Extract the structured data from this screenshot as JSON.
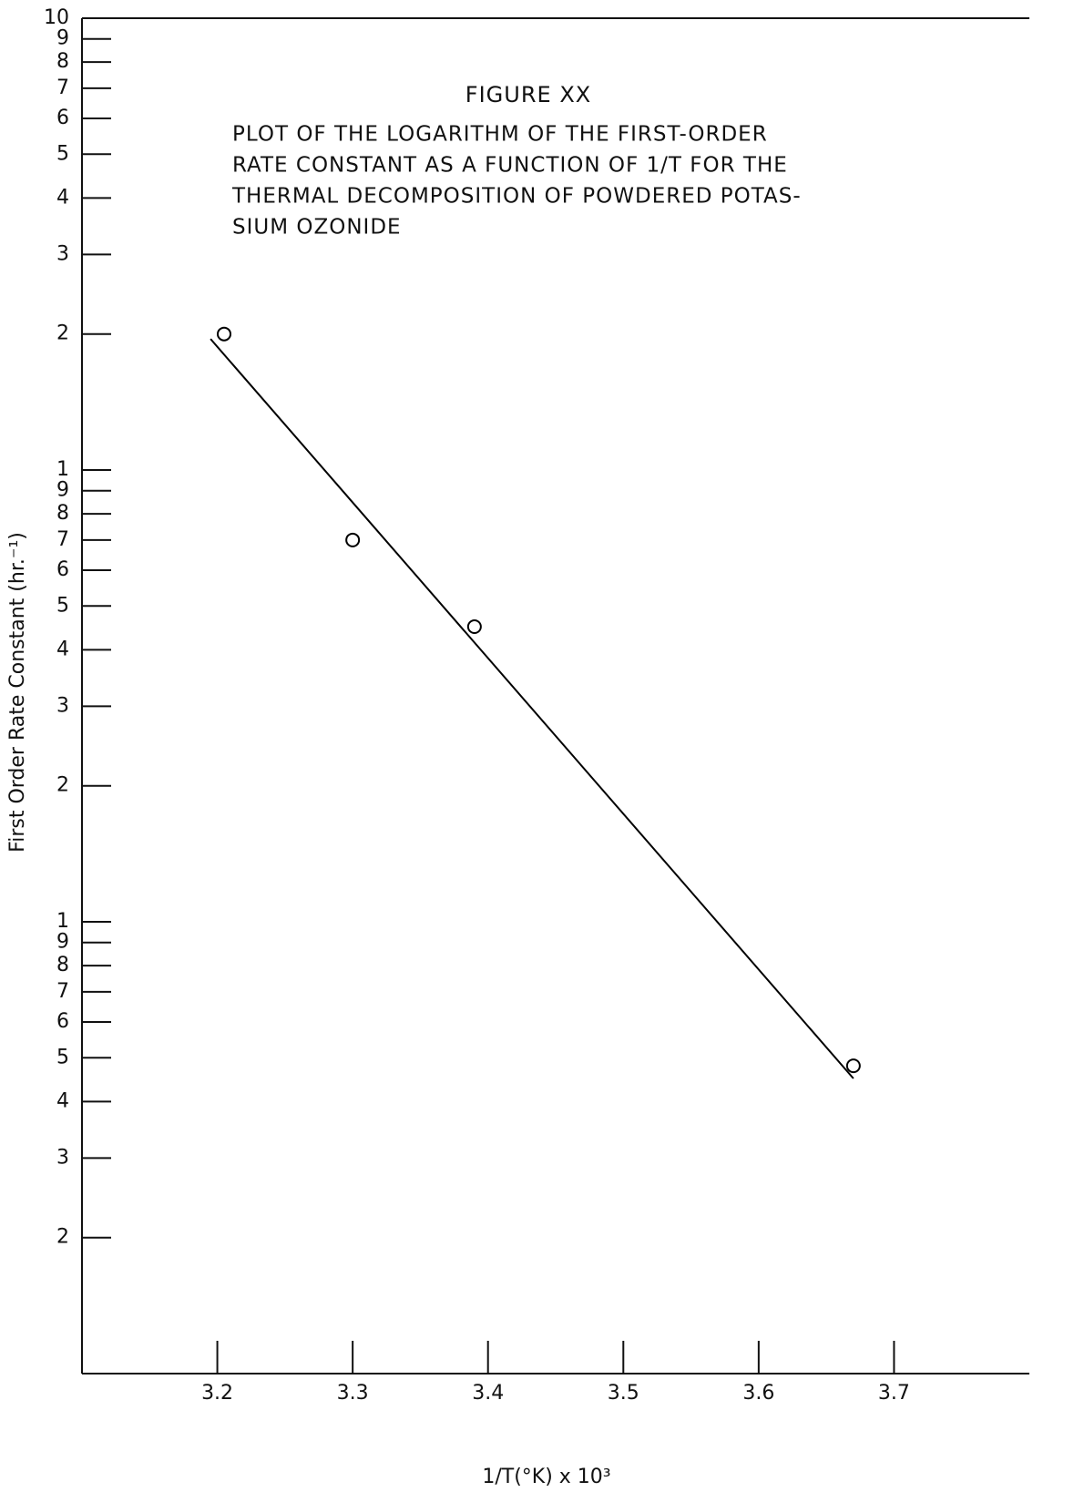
{
  "chart_data": {
    "type": "scatter",
    "title": "FIGURE XX",
    "caption": [
      "PLOT OF THE LOGARITHM OF THE FIRST-ORDER",
      "RATE CONSTANT AS A FUNCTION OF 1/T FOR THE",
      "THERMAL DECOMPOSITION OF POWDERED POTAS-",
      "SIUM OZONIDE"
    ],
    "xlabel": "1/T(°K) x 10³",
    "ylabel": "First Order Rate Constant (hr.⁻¹)",
    "x": [
      3.205,
      3.3,
      3.39,
      3.67
    ],
    "values": [
      2.0,
      0.7,
      0.45,
      0.048
    ],
    "color": "#000000",
    "fit_line": {
      "x": [
        3.195,
        3.67
      ],
      "values": [
        1.95,
        0.045
      ]
    },
    "xlim": [
      3.1,
      3.8
    ],
    "xticks": [
      3.2,
      3.3,
      3.4,
      3.5,
      3.6,
      3.7
    ],
    "ylim": [
      0.01,
      10
    ],
    "log_y": true,
    "yticks": [
      {
        "value": 0.02,
        "label": "2"
      },
      {
        "value": 0.03,
        "label": "3"
      },
      {
        "value": 0.04,
        "label": "4"
      },
      {
        "value": 0.05,
        "label": "5"
      },
      {
        "value": 0.06,
        "label": "6"
      },
      {
        "value": 0.07,
        "label": "7"
      },
      {
        "value": 0.08,
        "label": "8"
      },
      {
        "value": 0.09,
        "label": "9"
      },
      {
        "value": 0.1,
        "label": "1"
      },
      {
        "value": 0.2,
        "label": "2"
      },
      {
        "value": 0.3,
        "label": "3"
      },
      {
        "value": 0.4,
        "label": "4"
      },
      {
        "value": 0.5,
        "label": "5"
      },
      {
        "value": 0.6,
        "label": "6"
      },
      {
        "value": 0.7,
        "label": "7"
      },
      {
        "value": 0.8,
        "label": "8"
      },
      {
        "value": 0.9,
        "label": "9"
      },
      1,
      2,
      3,
      4,
      5,
      6,
      7,
      8,
      9,
      10
    ],
    "grid": false
  }
}
